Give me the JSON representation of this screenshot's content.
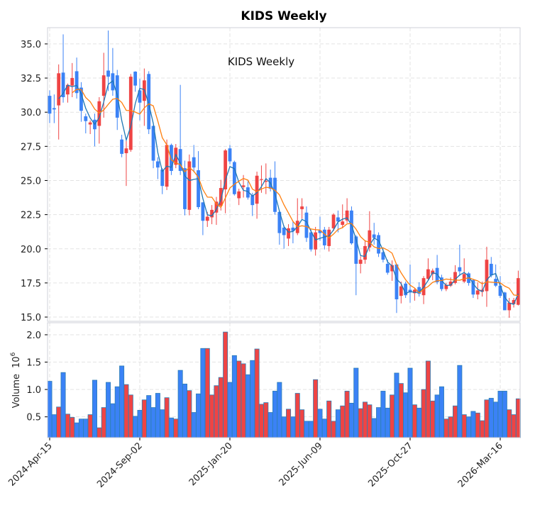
{
  "chart_data": {
    "type": "candlestick",
    "title": "KIDS  Weekly",
    "annotation": "KIDS  Weekly",
    "ylabel_volume": "Volume",
    "volume_exponent": "10",
    "volume_exponent_power": "6",
    "start_date": "2024-04-15",
    "frequency": "weekly",
    "x_tick_labels": [
      {
        "index": 0,
        "label": "2024-Apr-15"
      },
      {
        "index": 20,
        "label": "2024-Sep-02"
      },
      {
        "index": 40,
        "label": "2025-Jan-20"
      },
      {
        "index": 60,
        "label": "2025-Jun-09"
      },
      {
        "index": 80,
        "label": "2025-Oct-27"
      },
      {
        "index": 100,
        "label": "2026-Mar-16"
      }
    ],
    "price_ticks": [
      "15.0",
      "17.5",
      "20.0",
      "22.5",
      "25.0",
      "27.5",
      "30.0",
      "32.5",
      "35.0"
    ],
    "volume_ticks": [
      "0.5",
      "1.0",
      "1.5",
      "2.0"
    ],
    "price_ylim": [
      14.69,
      36.19
    ],
    "volume_ylim": [
      0.12,
      2.22
    ],
    "moving_averages": [
      3,
      6
    ],
    "grid": true,
    "colors": {
      "up": "#ef4444",
      "down": "#3b82f6",
      "edge": "#2f7fb5",
      "ma_short": "#1f77b4",
      "ma_long": "#ff7f0e"
    },
    "ohlc": [
      [
        31.2,
        31.6,
        29.2,
        29.9
      ],
      [
        30.3,
        31.3,
        29.2,
        30.2
      ],
      [
        30.5,
        33.5,
        28.0,
        32.85
      ],
      [
        32.9,
        35.7,
        30.7,
        31.1
      ],
      [
        31.3,
        32.1,
        30.7,
        32.0
      ],
      [
        31.95,
        33.6,
        31.1,
        32.5
      ],
      [
        33.0,
        34.0,
        31.0,
        31.4
      ],
      [
        31.8,
        32.2,
        29.3,
        30.1
      ],
      [
        29.7,
        29.9,
        28.45,
        29.35
      ],
      [
        29.1,
        29.4,
        28.4,
        29.25
      ],
      [
        29.45,
        29.9,
        27.5,
        28.75
      ],
      [
        29.0,
        31.1,
        27.7,
        30.8
      ],
      [
        31.2,
        34.35,
        29.6,
        32.7
      ],
      [
        33.05,
        35.98,
        31.55,
        32.6
      ],
      [
        32.85,
        34.7,
        31.2,
        31.6
      ],
      [
        32.7,
        33.1,
        28.7,
        29.6
      ],
      [
        28.0,
        28.35,
        26.7,
        26.95
      ],
      [
        27.0,
        27.9,
        24.6,
        27.35
      ],
      [
        27.24,
        32.8,
        27.1,
        32.6
      ],
      [
        32.97,
        33.0,
        31.5,
        31.95
      ],
      [
        31.6,
        32.45,
        29.4,
        30.7
      ],
      [
        30.83,
        33.2,
        29.0,
        32.33
      ],
      [
        32.8,
        33.0,
        28.4,
        28.75
      ],
      [
        29.0,
        29.0,
        25.9,
        26.45
      ],
      [
        26.4,
        26.7,
        25.1,
        25.95
      ],
      [
        25.8,
        25.9,
        24.0,
        24.6
      ],
      [
        24.55,
        28.0,
        24.3,
        27.6
      ],
      [
        27.6,
        27.7,
        25.4,
        25.7
      ],
      [
        26.15,
        27.67,
        25.9,
        27.4
      ],
      [
        27.3,
        32.0,
        25.4,
        25.7
      ],
      [
        25.9,
        26.45,
        22.45,
        22.9
      ],
      [
        22.85,
        26.9,
        22.45,
        26.4
      ],
      [
        26.7,
        27.6,
        25.6,
        25.95
      ],
      [
        25.75,
        27.15,
        22.9,
        23.05
      ],
      [
        23.4,
        23.4,
        21.0,
        22.05
      ],
      [
        22.05,
        22.7,
        21.6,
        22.35
      ],
      [
        22.3,
        23.2,
        21.8,
        22.85
      ],
      [
        22.65,
        23.8,
        21.75,
        23.45
      ],
      [
        23.15,
        25.05,
        22.8,
        24.45
      ],
      [
        24.35,
        27.3,
        22.6,
        27.2
      ],
      [
        27.35,
        27.6,
        26.2,
        26.4
      ],
      [
        26.35,
        26.45,
        23.9,
        24.0
      ],
      [
        23.7,
        24.4,
        23.2,
        24.2
      ],
      [
        24.52,
        25.4,
        23.75,
        24.64
      ],
      [
        24.5,
        24.95,
        23.6,
        23.75
      ],
      [
        23.9,
        24.1,
        22.4,
        23.2
      ],
      [
        23.3,
        25.65,
        22.2,
        25.35
      ],
      [
        25.05,
        26.1,
        24.1,
        25.1
      ],
      [
        24.9,
        26.25,
        24.0,
        24.97
      ],
      [
        25.2,
        25.8,
        24.2,
        24.4
      ],
      [
        25.2,
        26.4,
        22.5,
        22.7
      ],
      [
        22.7,
        22.8,
        20.3,
        21.15
      ],
      [
        21.55,
        21.7,
        20.0,
        21.0
      ],
      [
        20.75,
        21.8,
        20.2,
        21.5
      ],
      [
        21.55,
        22.0,
        20.4,
        21.3
      ],
      [
        21.15,
        23.7,
        21.0,
        22.05
      ],
      [
        22.9,
        23.7,
        22.2,
        23.1
      ],
      [
        22.65,
        23.1,
        20.5,
        20.8
      ],
      [
        21.2,
        21.4,
        19.8,
        19.95
      ],
      [
        19.95,
        21.6,
        19.5,
        21.2
      ],
      [
        21.35,
        22.35,
        20.6,
        21.15
      ],
      [
        21.4,
        21.6,
        19.95,
        20.25
      ],
      [
        20.2,
        21.6,
        19.8,
        21.4
      ],
      [
        21.5,
        22.6,
        21.3,
        22.5
      ],
      [
        22.3,
        22.8,
        21.2,
        22.0
      ],
      [
        21.75,
        23.25,
        21.5,
        22.0
      ],
      [
        22.07,
        23.7,
        21.9,
        22.8
      ],
      [
        22.8,
        23.1,
        20.3,
        20.4
      ],
      [
        20.9,
        21.0,
        16.6,
        18.9
      ],
      [
        18.9,
        19.45,
        18.2,
        19.2
      ],
      [
        19.2,
        20.6,
        18.9,
        20.2
      ],
      [
        20.1,
        22.75,
        19.8,
        21.35
      ],
      [
        21.05,
        21.9,
        20.3,
        20.8
      ],
      [
        21.0,
        21.2,
        19.4,
        19.65
      ],
      [
        19.75,
        20.0,
        19.0,
        19.2
      ],
      [
        18.9,
        19.2,
        18.1,
        18.25
      ],
      [
        18.35,
        19.15,
        17.65,
        18.8
      ],
      [
        18.85,
        18.9,
        15.3,
        16.3
      ],
      [
        16.55,
        17.6,
        16.0,
        17.25
      ],
      [
        17.45,
        17.6,
        16.4,
        16.6
      ],
      [
        17.0,
        18.85,
        16.05,
        16.8
      ],
      [
        16.75,
        17.15,
        16.2,
        17.0
      ],
      [
        17.2,
        17.55,
        16.5,
        16.7
      ],
      [
        16.6,
        18.0,
        15.95,
        17.85
      ],
      [
        17.8,
        19.3,
        17.7,
        18.5
      ],
      [
        18.15,
        18.55,
        17.7,
        18.4
      ],
      [
        18.6,
        19.55,
        17.4,
        17.55
      ],
      [
        17.9,
        18.1,
        16.9,
        17.05
      ],
      [
        17.05,
        17.5,
        16.9,
        17.35
      ],
      [
        17.3,
        17.9,
        17.2,
        17.6
      ],
      [
        17.5,
        18.8,
        17.4,
        18.3
      ],
      [
        18.65,
        20.3,
        18.0,
        18.35
      ],
      [
        17.6,
        19.3,
        17.5,
        18.15
      ],
      [
        18.2,
        18.3,
        17.3,
        17.5
      ],
      [
        17.7,
        17.8,
        16.4,
        16.65
      ],
      [
        16.65,
        17.55,
        16.3,
        16.95
      ],
      [
        16.85,
        17.6,
        16.5,
        17.0
      ],
      [
        16.9,
        20.15,
        15.75,
        19.2
      ],
      [
        18.9,
        19.4,
        17.9,
        18.05
      ],
      [
        17.8,
        18.85,
        17.2,
        17.3
      ],
      [
        17.3,
        18.0,
        16.4,
        16.55
      ],
      [
        16.8,
        16.85,
        15.5,
        15.5
      ],
      [
        15.5,
        16.4,
        14.95,
        16.05
      ],
      [
        15.95,
        16.4,
        15.7,
        16.25
      ],
      [
        15.9,
        18.4,
        15.85,
        17.85
      ]
    ],
    "volume_millions": [
      1.15,
      0.54,
      0.68,
      1.31,
      0.55,
      0.49,
      0.39,
      0.46,
      0.46,
      0.54,
      1.17,
      0.3,
      0.67,
      1.13,
      0.74,
      1.05,
      1.43,
      1.09,
      0.9,
      0.51,
      0.62,
      0.81,
      0.89,
      0.67,
      0.93,
      0.63,
      0.85,
      0.48,
      0.46,
      1.35,
      1.1,
      0.98,
      0.58,
      0.92,
      1.75,
      1.75,
      0.9,
      1.07,
      1.22,
      2.05,
      1.13,
      1.62,
      1.52,
      1.47,
      1.27,
      1.53,
      1.74,
      0.73,
      0.76,
      0.58,
      0.97,
      1.13,
      0.5,
      0.64,
      0.5,
      0.93,
      0.63,
      0.42,
      0.42,
      1.18,
      0.64,
      0.46,
      0.79,
      0.42,
      0.63,
      0.7,
      0.97,
      0.75,
      1.39,
      0.65,
      0.77,
      0.72,
      0.47,
      0.67,
      0.97,
      0.66,
      0.9,
      1.3,
      1.11,
      0.94,
      1.39,
      0.72,
      0.66,
      1.0,
      1.52,
      0.79,
      0.9,
      1.05,
      0.46,
      0.5,
      0.7,
      1.44,
      0.54,
      0.5,
      0.6,
      0.57,
      0.43,
      0.81,
      0.84,
      0.77,
      0.97,
      0.97,
      0.63,
      0.54,
      0.83
    ]
  }
}
